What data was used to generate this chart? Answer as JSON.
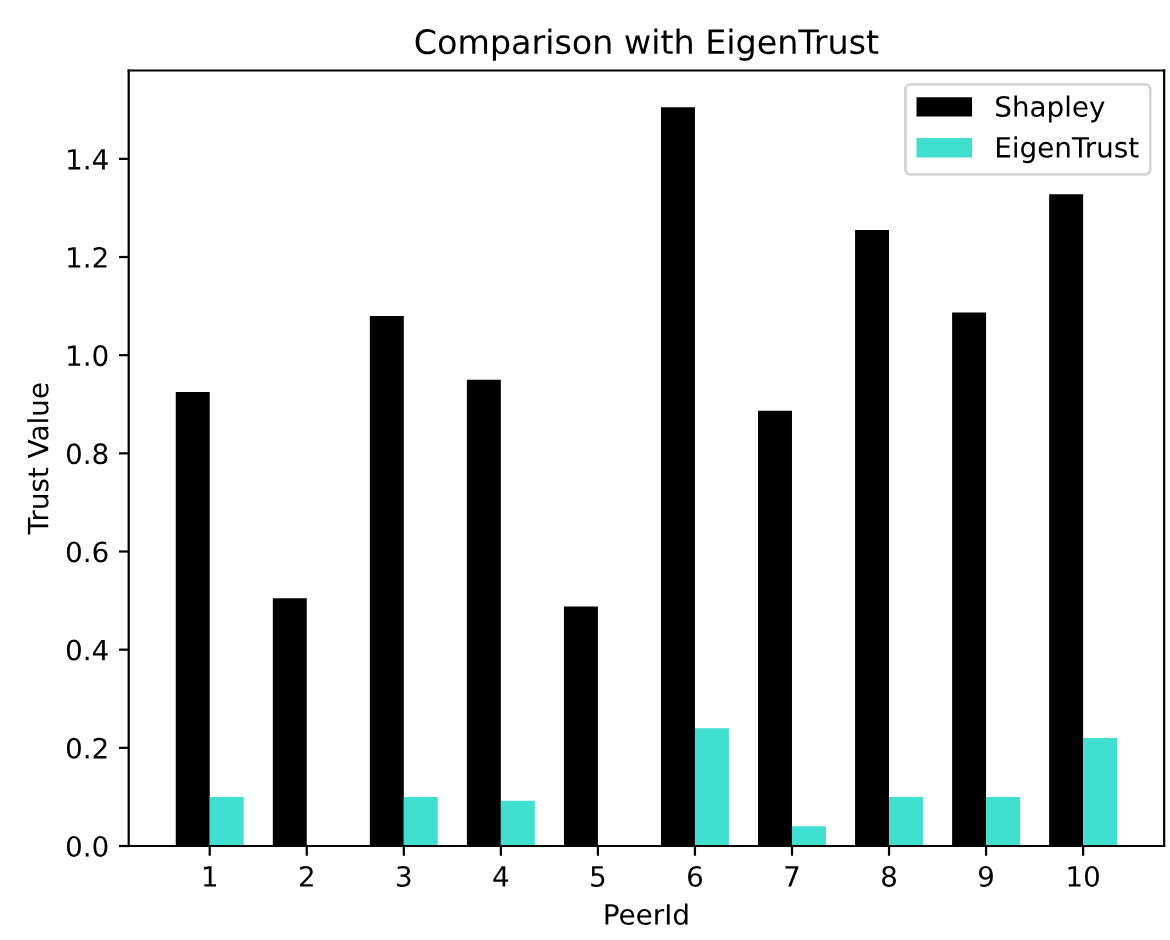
{
  "chart_data": {
    "type": "bar",
    "title": "Comparison with EigenTrust",
    "xlabel": "PeerId",
    "ylabel": "Trust Value",
    "categories": [
      "1",
      "2",
      "3",
      "4",
      "5",
      "6",
      "7",
      "8",
      "9",
      "10"
    ],
    "series": [
      {
        "name": "Shapley",
        "color": "#000000",
        "values": [
          0.925,
          0.505,
          1.08,
          0.95,
          0.488,
          1.505,
          0.887,
          1.255,
          1.087,
          1.328
        ]
      },
      {
        "name": "EigenTrust",
        "color": "#40e0d0",
        "values": [
          0.1,
          0,
          0.1,
          0.092,
          0,
          0.24,
          0.04,
          0.1,
          0.1,
          0.22
        ]
      }
    ],
    "ylim": [
      0,
      1.58
    ],
    "yticks": [
      {
        "value": 0,
        "label": "0.0"
      },
      0.2,
      0.4,
      0.6,
      0.8,
      {
        "value": 1,
        "label": "1.0"
      },
      1.2,
      1.4
    ],
    "legend": "top right",
    "grid": false
  }
}
